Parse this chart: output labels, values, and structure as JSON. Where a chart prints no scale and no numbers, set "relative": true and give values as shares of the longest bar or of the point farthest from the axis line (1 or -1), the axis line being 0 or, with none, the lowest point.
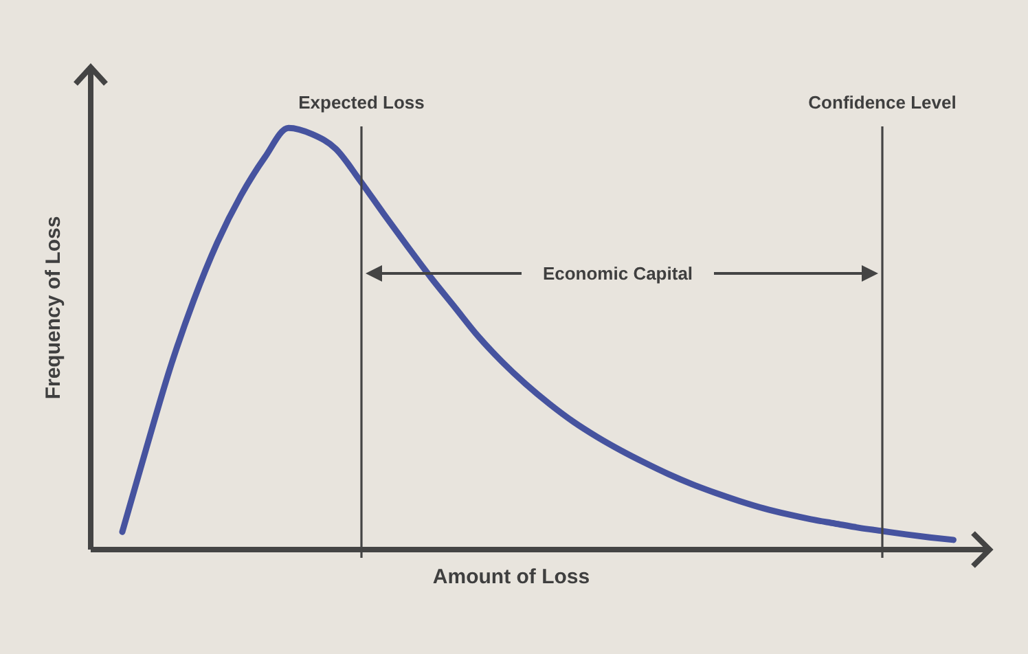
{
  "chart_data": {
    "type": "line",
    "xlabel": "Amount of Loss",
    "ylabel": "Frequency of Loss",
    "relative": true,
    "categories": [
      null,
      null,
      null,
      null,
      null,
      null,
      null,
      null,
      null,
      null,
      null,
      null,
      null,
      null,
      null,
      null,
      null,
      null,
      null,
      null,
      null,
      null,
      null,
      null,
      null,
      null,
      null,
      null,
      null,
      null,
      null,
      null,
      null,
      null,
      null,
      null
    ],
    "series": [
      {
        "color": "#46539f",
        "values": [
          0.042,
          0.238,
          0.428,
          0.59,
          0.728,
          0.84,
          0.93,
          1.0,
          0.985,
          0.95,
          0.876,
          0.797,
          0.72,
          0.645,
          0.575,
          0.505,
          0.445,
          0.392,
          0.345,
          0.303,
          0.267,
          0.235,
          0.206,
          0.179,
          0.155,
          0.134,
          0.115,
          0.098,
          0.084,
          0.072,
          0.062,
          0.052,
          0.044,
          0.036,
          0.029,
          0.023
        ]
      }
    ],
    "annotations": [
      "Expected Loss",
      "Confidence Level",
      "Economic Capital"
    ],
    "line_style": "solid"
  }
}
